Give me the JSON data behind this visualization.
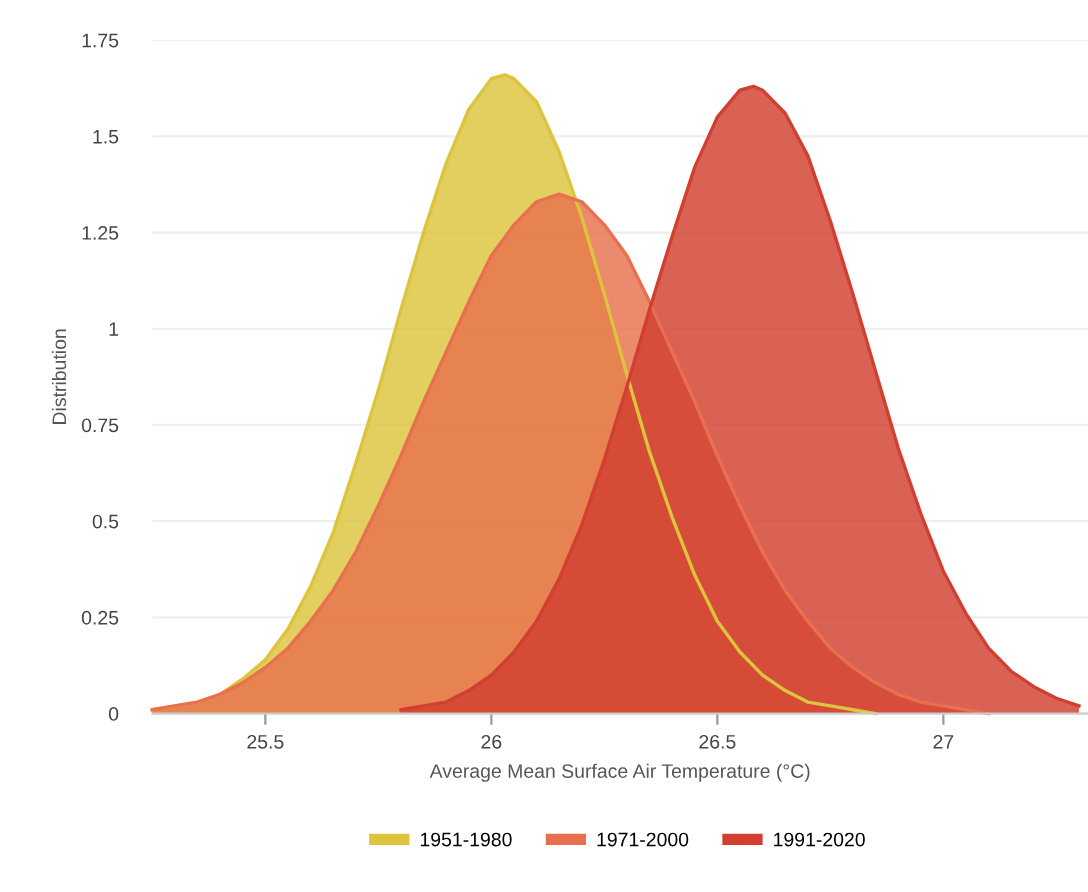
{
  "chart_data": {
    "type": "area",
    "xlabel": "Average Mean Surface Air Temperature (°C)",
    "ylabel": "Distribution",
    "xlim": [
      25.25,
      27.32
    ],
    "xticks": [
      25.5,
      26,
      26.5,
      27
    ],
    "ylim": [
      0,
      1.75
    ],
    "yticks": [
      0,
      0.25,
      0.5,
      0.75,
      1,
      1.25,
      1.5,
      1.75
    ],
    "grid": "y",
    "legend": "bottom",
    "series": [
      {
        "name": "1951-1980",
        "color": "#dcc43c",
        "x": [
          25.25,
          25.3,
          25.35,
          25.4,
          25.45,
          25.5,
          25.55,
          25.6,
          25.65,
          25.7,
          25.75,
          25.8,
          25.85,
          25.9,
          25.95,
          26.0,
          26.03,
          26.05,
          26.1,
          26.15,
          26.2,
          26.25,
          26.3,
          26.35,
          26.4,
          26.45,
          26.5,
          26.55,
          26.6,
          26.65,
          26.7,
          26.75,
          26.8,
          26.85
        ],
        "values": [
          0.01,
          0.02,
          0.03,
          0.05,
          0.09,
          0.14,
          0.22,
          0.33,
          0.47,
          0.65,
          0.84,
          1.05,
          1.25,
          1.43,
          1.57,
          1.65,
          1.66,
          1.65,
          1.59,
          1.46,
          1.29,
          1.09,
          0.88,
          0.68,
          0.51,
          0.36,
          0.24,
          0.16,
          0.1,
          0.06,
          0.03,
          0.02,
          0.01,
          0
        ]
      },
      {
        "name": "1971-2000",
        "color": "#e8704e",
        "x": [
          25.25,
          25.3,
          25.35,
          25.4,
          25.45,
          25.5,
          25.55,
          25.6,
          25.65,
          25.7,
          25.75,
          25.8,
          25.85,
          25.9,
          25.95,
          26.0,
          26.05,
          26.1,
          26.15,
          26.2,
          26.25,
          26.3,
          26.35,
          26.4,
          26.45,
          26.5,
          26.55,
          26.6,
          26.65,
          26.7,
          26.75,
          26.8,
          26.85,
          26.9,
          26.95,
          27.0,
          27.05,
          27.1
        ],
        "values": [
          0.01,
          0.02,
          0.03,
          0.05,
          0.08,
          0.12,
          0.17,
          0.24,
          0.32,
          0.42,
          0.54,
          0.67,
          0.81,
          0.94,
          1.07,
          1.19,
          1.27,
          1.33,
          1.35,
          1.33,
          1.27,
          1.19,
          1.07,
          0.94,
          0.81,
          0.67,
          0.54,
          0.42,
          0.32,
          0.24,
          0.17,
          0.12,
          0.08,
          0.05,
          0.03,
          0.02,
          0.01,
          0
        ]
      },
      {
        "name": "1991-2020",
        "color": "#d23f30",
        "x": [
          25.8,
          25.85,
          25.9,
          25.95,
          26.0,
          26.05,
          26.1,
          26.15,
          26.2,
          26.25,
          26.3,
          26.35,
          26.4,
          26.45,
          26.5,
          26.55,
          26.58,
          26.6,
          26.65,
          26.7,
          26.75,
          26.8,
          26.85,
          26.9,
          26.95,
          27.0,
          27.05,
          27.1,
          27.15,
          27.2,
          27.25,
          27.3
        ],
        "values": [
          0.01,
          0.02,
          0.03,
          0.06,
          0.1,
          0.16,
          0.24,
          0.35,
          0.49,
          0.66,
          0.85,
          1.05,
          1.24,
          1.42,
          1.55,
          1.62,
          1.63,
          1.62,
          1.56,
          1.45,
          1.28,
          1.09,
          0.89,
          0.69,
          0.52,
          0.37,
          0.26,
          0.17,
          0.11,
          0.07,
          0.04,
          0.02
        ]
      }
    ]
  }
}
